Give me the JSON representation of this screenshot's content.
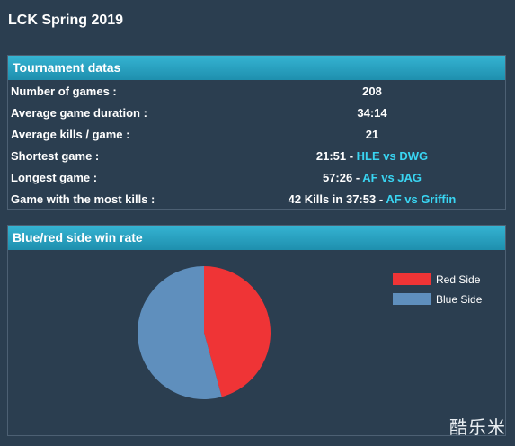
{
  "page": {
    "title": "LCK Spring 2019"
  },
  "stats_panel": {
    "header": "Tournament datas",
    "rows": [
      {
        "label": "Number of games :",
        "value": "208"
      },
      {
        "label": "Average game duration :",
        "value": "34:14"
      },
      {
        "label": "Average kills / game :",
        "value": "21"
      },
      {
        "label": "Shortest game :",
        "value": "21:51",
        "sep": " - ",
        "matchup": "HLE vs DWG"
      },
      {
        "label": "Longest game :",
        "value": "57:26",
        "sep": " - ",
        "matchup": "AF vs JAG"
      },
      {
        "label": "Game with the most kills :",
        "value": "42 Kills in 37:53",
        "sep": " - ",
        "matchup": "AF vs Griffin"
      }
    ]
  },
  "pie_panel": {
    "header": "Blue/red side win rate"
  },
  "chart_data": {
    "type": "pie",
    "title": "Blue/red side win rate",
    "slices": [
      {
        "label": "Red Side",
        "value": 45.7,
        "color": "#ef3436"
      },
      {
        "label": "Blue Side",
        "value": 54.3,
        "color": "#5f8fbd"
      }
    ],
    "legend": "right"
  },
  "watermark": "酷乐米",
  "colors": {
    "background": "#2b3e50",
    "header": "#2aa3c3",
    "matchup_text": "#39d5f2",
    "red_side": "#ef3436",
    "blue_side": "#5f8fbd"
  }
}
